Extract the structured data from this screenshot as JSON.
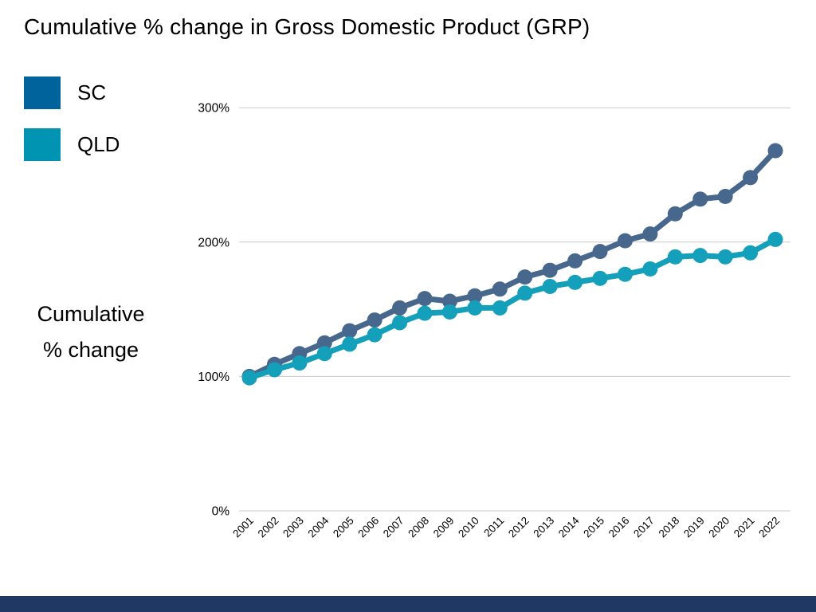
{
  "title": "Cumulative % change in Gross Domestic Product (GRP)",
  "legend": {
    "items": [
      {
        "label": "SC",
        "swatch_color": "#00639C"
      },
      {
        "label": "QLD",
        "swatch_color": "#0093B2"
      }
    ]
  },
  "y_axis_title": {
    "line1": "Cumulative",
    "line2": "% change"
  },
  "footer_bar_color": "#1F3864",
  "chart_data": {
    "type": "line",
    "title": "Cumulative % change in Gross Domestic Product (GRP)",
    "xlabel": "",
    "ylabel": "Cumulative % change",
    "categories": [
      "2001",
      "2002",
      "2003",
      "2004",
      "2005",
      "2006",
      "2007",
      "2008",
      "2009",
      "2010",
      "2011",
      "2012",
      "2013",
      "2014",
      "2015",
      "2016",
      "2017",
      "2018",
      "2019",
      "2020",
      "2021",
      "2022"
    ],
    "series": [
      {
        "name": "SC",
        "color": "#47688C",
        "values": [
          100,
          109,
          117,
          125,
          134,
          142,
          151,
          158,
          156,
          160,
          165,
          174,
          179,
          186,
          193,
          201,
          206,
          221,
          232,
          234,
          248,
          268
        ]
      },
      {
        "name": "QLD",
        "color": "#149FBA",
        "values": [
          99,
          105,
          110,
          117,
          124,
          131,
          140,
          147,
          148,
          151,
          151,
          162,
          167,
          170,
          173,
          176,
          180,
          189,
          190,
          189,
          192,
          202
        ]
      }
    ],
    "ylim": [
      0,
      300
    ],
    "yticks": [
      {
        "label": "0%",
        "value": 0
      },
      {
        "label": "100%",
        "value": 100
      },
      {
        "label": "200%",
        "value": 200
      },
      {
        "label": "300%",
        "value": 300
      }
    ],
    "grid": true,
    "legend_position": "top-left"
  }
}
